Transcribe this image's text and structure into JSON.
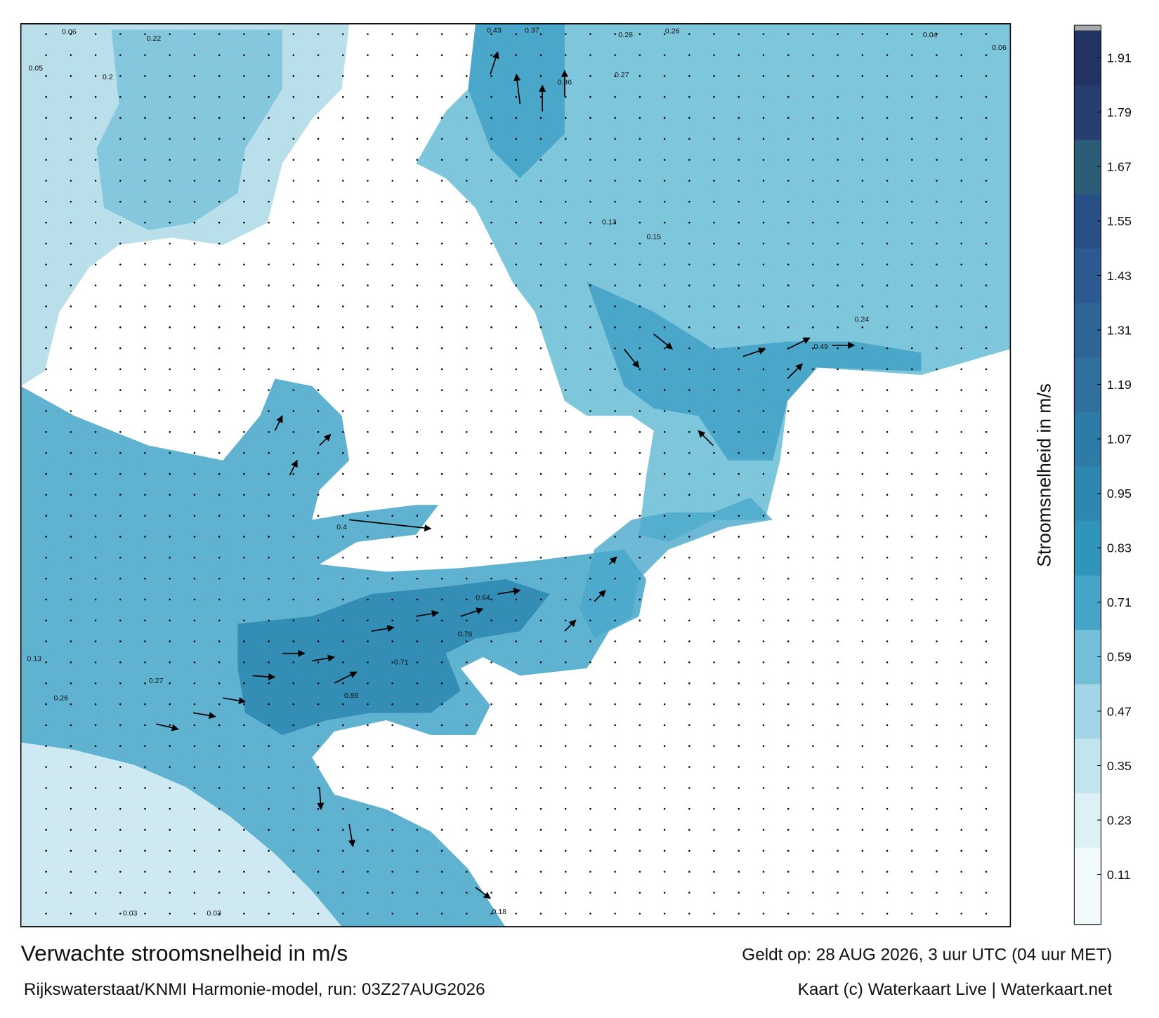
{
  "title": "Verwachte stroomsnelheid in m/s",
  "subtitle": "Rijkswaterstaat/KNMI Harmonie-model, run: 03Z27AUG2026",
  "valid_time": "Geldt op: 28 AUG 2026, 3 uur UTC (04 uur MET)",
  "credit": "Kaart (c) Waterkaart Live | Waterkaart.net",
  "colorbar": {
    "label": "Stroomsnelheid in m/s",
    "lim": [
      0,
      1.97
    ],
    "ticks": [
      0.11,
      0.23,
      0.35,
      0.47,
      0.59,
      0.71,
      0.83,
      0.95,
      1.07,
      1.19,
      1.31,
      1.43,
      1.55,
      1.67,
      1.79,
      1.91
    ],
    "colors": [
      "#f2f9fb",
      "#dcf0f6",
      "#c2e4ef",
      "#a3d5e6",
      "#74bed7",
      "#44a5c8",
      "#2f95bb",
      "#2e87b0",
      "#2f7ba7",
      "#30709e",
      "#2e6597",
      "#2b5990",
      "#295086",
      "#2c5c78",
      "#263f70",
      "#233462",
      "#1f2a50"
    ]
  },
  "map_labels": [
    "0.06",
    "0.22",
    "0.05",
    "0.2",
    "0.43",
    "0.37",
    "0.28",
    "0.26",
    "0.36",
    "0.27",
    "0.13",
    "0.15",
    "0.49",
    "0.24",
    "0.4",
    "0.55",
    "0.71",
    "0.76",
    "0.64",
    "0.27",
    "0.26",
    "0.13",
    "0.03",
    "0.03",
    "0.18",
    "0.04",
    "0.06"
  ]
}
